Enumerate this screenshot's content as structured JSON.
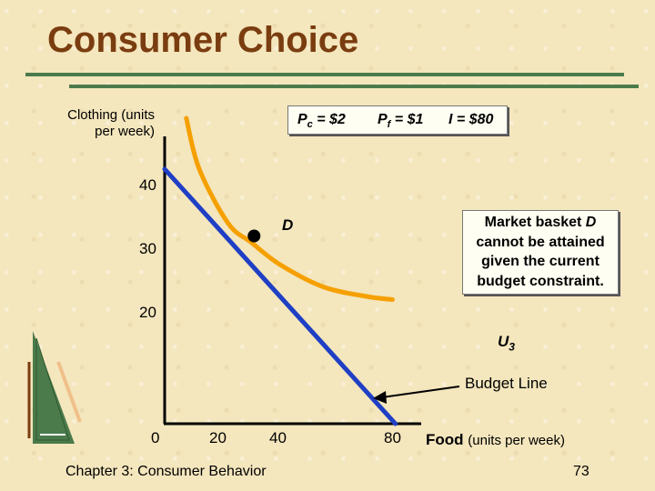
{
  "slide": {
    "title": "Consumer Choice",
    "footer": "Chapter 3: Consumer Behavior",
    "page_number": "73"
  },
  "chart_data": {
    "type": "line",
    "xlabel_main": "Food",
    "xlabel_unit": "(units per week)",
    "ylabel": "Clothing (units per week)",
    "x_ticks": [
      "0",
      "20",
      "40",
      "80"
    ],
    "y_ticks": [
      "40",
      "30",
      "20"
    ],
    "xlim": [
      0,
      95
    ],
    "ylim": [
      0,
      48
    ],
    "prices": {
      "pc": {
        "sym": "P",
        "sub": "c",
        "rest": " = $2"
      },
      "pf": {
        "sym": "P",
        "sub": "f",
        "rest": " = $1"
      },
      "income": "I = $80"
    },
    "series": [
      {
        "name": "Budget Line",
        "color": "#1f3fc4",
        "points": [
          [
            0,
            40
          ],
          [
            80,
            0
          ]
        ]
      },
      {
        "name": "U3",
        "color": "#f5a000",
        "points": [
          [
            7.5,
            48
          ],
          [
            12,
            40
          ],
          [
            22,
            31.5
          ],
          [
            30,
            28.5
          ],
          [
            40,
            25
          ],
          [
            55,
            21.5
          ],
          [
            70,
            20
          ],
          [
            79,
            19.5
          ]
        ]
      }
    ],
    "point_D": {
      "label": "D",
      "x": 31,
      "y": 29.5
    },
    "labels": {
      "u_main": "U",
      "u_sub": "3",
      "budget_line": "Budget Line"
    },
    "annotation": {
      "line1_pre": "Market basket ",
      "line1_em": "D",
      "line2": "cannot be attained",
      "line3": "given the current",
      "line4": "budget constraint."
    },
    "colors": {
      "budget": "#1f3fc4",
      "indifference": "#f5a000",
      "title": "#7a3d10",
      "rule": "#4b7a4b"
    }
  }
}
